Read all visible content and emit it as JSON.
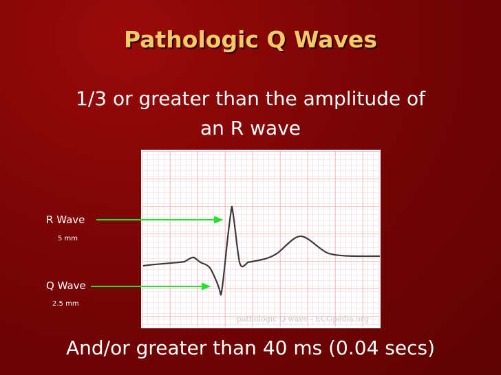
{
  "title": "Pathologic Q Waves",
  "body": {
    "lines": [
      "1/3 or greater than the amplitude of",
      "an R wave"
    ]
  },
  "figure": {
    "labels": [
      {
        "name": "R Wave",
        "size": "5 mm"
      },
      {
        "name": "Q Wave",
        "size": "2.5 mm"
      }
    ],
    "credit": "pathologic Q wave - ECGpedia.org"
  },
  "footer": "And/or greater than 40 ms (0.04 secs)"
}
